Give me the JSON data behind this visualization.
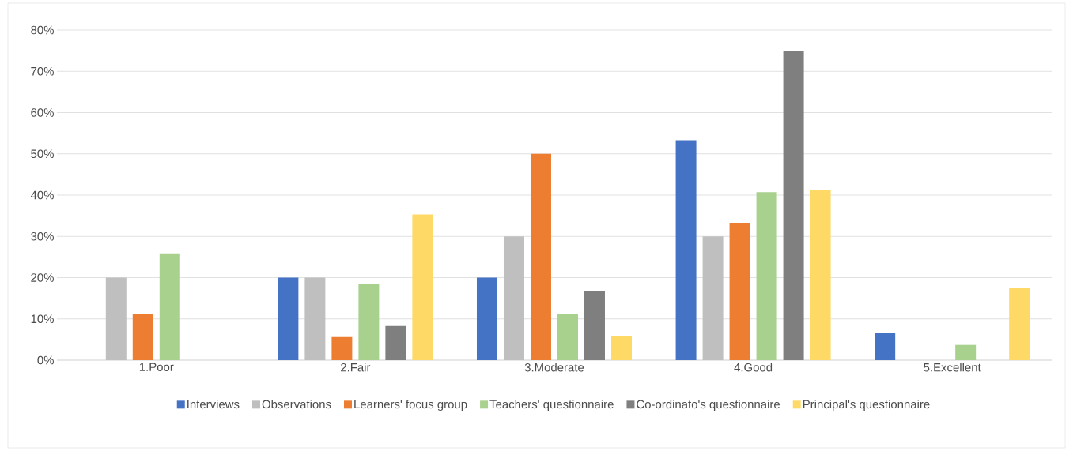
{
  "chart_data": {
    "type": "bar",
    "categories": [
      "1.Poor",
      "2.Fair",
      "3.Moderate",
      "4.Good",
      "5.Excellent"
    ],
    "series": [
      {
        "name": "Interviews",
        "color": "#4472c4",
        "values": [
          0,
          20,
          20,
          53.3,
          6.7
        ]
      },
      {
        "name": "Observations",
        "color": "#bfbfbf",
        "values": [
          20,
          20,
          30,
          30,
          0
        ]
      },
      {
        "name": "Learners' focus group",
        "color": "#ed7d31",
        "values": [
          11.1,
          5.6,
          50,
          33.3,
          0
        ]
      },
      {
        "name": "Teachers' questionnaire",
        "color": "#a9d18e",
        "values": [
          25.9,
          18.5,
          11.1,
          40.7,
          3.7
        ]
      },
      {
        "name": "Co-ordinato's questionnaire",
        "color": "#7f7f7f",
        "values": [
          0,
          8.3,
          16.7,
          75,
          0
        ]
      },
      {
        "name": "Principal's questionnaire",
        "color": "#ffd966",
        "values": [
          0,
          35.3,
          5.9,
          41.2,
          17.6
        ]
      }
    ],
    "ylim": [
      0,
      80
    ],
    "yticks": [
      {
        "value": 0,
        "label": "0%"
      },
      {
        "value": 10,
        "label": "10%"
      },
      {
        "value": 20,
        "label": "20%"
      },
      {
        "value": 30,
        "label": "30%"
      },
      {
        "value": 40,
        "label": "40%"
      },
      {
        "value": 50,
        "label": "50%"
      },
      {
        "value": 60,
        "label": "60%"
      },
      {
        "value": 70,
        "label": "70%"
      },
      {
        "value": 80,
        "label": "80%"
      }
    ],
    "grid": "y",
    "legend": "bottom"
  }
}
